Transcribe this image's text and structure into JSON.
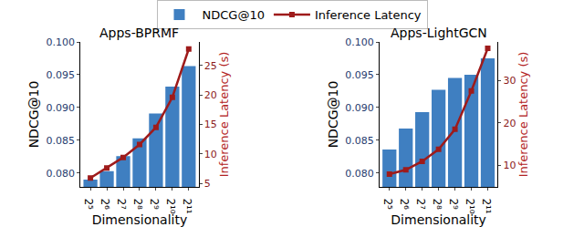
{
  "chart_data": [
    {
      "type": "bar",
      "title": "Apps-BPRMF",
      "categories": [
        "2⁵",
        "2⁶",
        "2⁷",
        "2⁸",
        "2⁹",
        "2¹⁰",
        "2¹¹"
      ],
      "series": [
        {
          "name": "NDCG@10",
          "type": "bar",
          "color": "#3f7fc1",
          "values": [
            0.079,
            0.0803,
            0.0826,
            0.0853,
            0.0891,
            0.0932,
            0.0963
          ]
        },
        {
          "name": "Inference Latency",
          "type": "line",
          "axis": "y2",
          "color": "#9e1b1b",
          "marker": "square",
          "values": [
            5.9,
            7.6,
            9.4,
            11.6,
            14.5,
            19.6,
            27.8
          ]
        }
      ],
      "xlabel": "Dimensionality",
      "ylabel": "NDCG@10",
      "y2label": "Inference Latency (s)",
      "ylim": [
        0.0779,
        0.1
      ],
      "yticks": [
        {
          "value": 0.08,
          "label": "0.080"
        },
        {
          "value": 0.085,
          "label": "0.085"
        },
        {
          "value": 0.09,
          "label": "0.090"
        },
        {
          "value": 0.095,
          "label": "0.095"
        },
        {
          "value": 0.1,
          "label": "0.100"
        }
      ],
      "y2lim": [
        4.4,
        29
      ],
      "y2ticks": [
        5,
        10,
        15,
        20,
        25
      ],
      "legend": "top"
    },
    {
      "type": "bar",
      "title": "Apps-LightGCN",
      "categories": [
        "2⁵",
        "2⁶",
        "2⁷",
        "2⁸",
        "2⁹",
        "2¹⁰",
        "2¹¹"
      ],
      "series": [
        {
          "name": "NDCG@10",
          "type": "bar",
          "color": "#3f7fc1",
          "values": [
            0.0836,
            0.0868,
            0.0893,
            0.0927,
            0.0945,
            0.095,
            0.0975
          ]
        },
        {
          "name": "Inference Latency",
          "type": "line",
          "axis": "y2",
          "color": "#9e1b1b",
          "marker": "square",
          "values": [
            8.0,
            9.0,
            11.0,
            13.8,
            18.5,
            27.5,
            37.5
          ]
        }
      ],
      "xlabel": "Dimensionality",
      "ylabel": "NDCG@10",
      "y2label": "Inference Latency (s)",
      "ylim": [
        0.0779,
        0.1
      ],
      "yticks": [
        {
          "value": 0.08,
          "label": "0.080"
        },
        {
          "value": 0.085,
          "label": "0.085"
        },
        {
          "value": 0.09,
          "label": "0.090"
        },
        {
          "value": 0.095,
          "label": "0.095"
        },
        {
          "value": 0.1,
          "label": "0.100"
        }
      ],
      "y2lim": [
        5,
        39
      ],
      "y2ticks": [
        10,
        20,
        30
      ],
      "legend": "top"
    }
  ]
}
